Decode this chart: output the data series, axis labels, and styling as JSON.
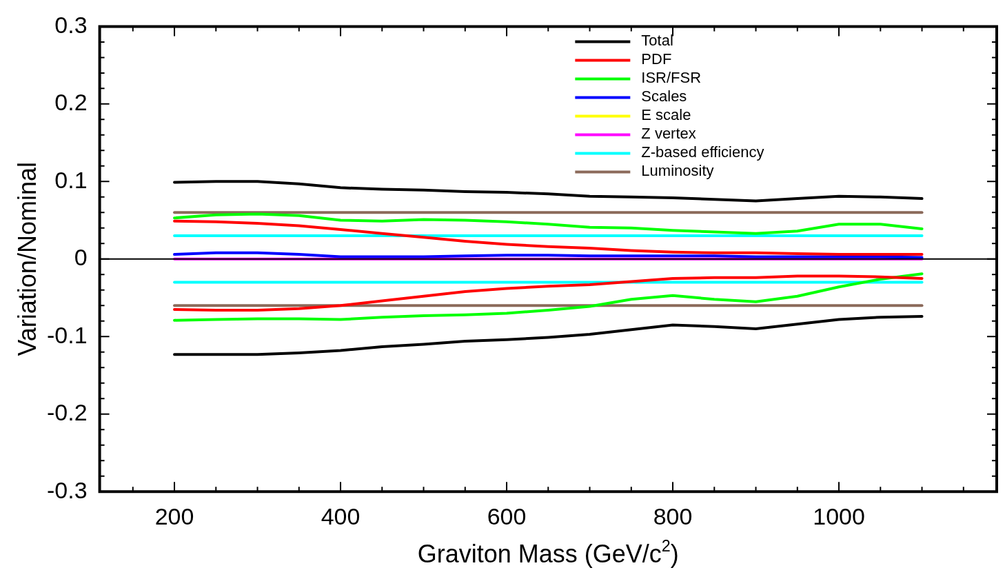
{
  "chart_data": {
    "type": "line",
    "xlabel": "Graviton Mass (GeV/c$^{2}$)",
    "ylabel": "Variation/Nominal",
    "x": [
      200,
      250,
      300,
      350,
      400,
      450,
      500,
      550,
      600,
      650,
      700,
      750,
      800,
      850,
      900,
      950,
      1000,
      1050,
      1100
    ],
    "xlim": [
      110,
      1190
    ],
    "xticks": [
      {
        "value": 150,
        "label": null
      },
      200,
      {
        "value": 250,
        "label": null
      },
      {
        "value": 300,
        "label": null
      },
      {
        "value": 350,
        "label": null
      },
      400,
      {
        "value": 450,
        "label": null
      },
      {
        "value": 500,
        "label": null
      },
      {
        "value": 550,
        "label": null
      },
      600,
      {
        "value": 650,
        "label": null
      },
      {
        "value": 700,
        "label": null
      },
      {
        "value": 750,
        "label": null
      },
      800,
      {
        "value": 850,
        "label": null
      },
      {
        "value": 900,
        "label": null
      },
      {
        "value": 950,
        "label": null
      },
      1000,
      {
        "value": 1050,
        "label": null
      },
      {
        "value": 1100,
        "label": null
      },
      {
        "value": 1150,
        "label": null
      }
    ],
    "ylim": [
      -0.3,
      0.3
    ],
    "yticks": [
      -0.3,
      {
        "value": -0.28,
        "label": null
      },
      {
        "value": -0.26,
        "label": null
      },
      {
        "value": -0.24,
        "label": null
      },
      {
        "value": -0.22,
        "label": null
      },
      -0.2,
      {
        "value": -0.18,
        "label": null
      },
      {
        "value": -0.16,
        "label": null
      },
      {
        "value": -0.14,
        "label": null
      },
      {
        "value": -0.12,
        "label": null
      },
      -0.1,
      {
        "value": -0.08,
        "label": null
      },
      {
        "value": -0.06,
        "label": null
      },
      {
        "value": -0.04,
        "label": null
      },
      {
        "value": -0.02,
        "label": null
      },
      0,
      {
        "value": 0.02,
        "label": null
      },
      {
        "value": 0.04,
        "label": null
      },
      {
        "value": 0.06,
        "label": null
      },
      {
        "value": 0.08,
        "label": null
      },
      0.1,
      {
        "value": 0.12,
        "label": null
      },
      {
        "value": 0.14,
        "label": null
      },
      {
        "value": 0.16,
        "label": null
      },
      {
        "value": 0.18,
        "label": null
      },
      0.2,
      {
        "value": 0.22,
        "label": null
      },
      {
        "value": 0.24,
        "label": null
      },
      {
        "value": 0.26,
        "label": null
      },
      {
        "value": 0.28,
        "label": null
      },
      0.3
    ],
    "legend": "top right",
    "marker": "none",
    "line_style": "solid",
    "ref_lines": [
      {
        "axis": "y",
        "value": 0,
        "color": "#000000"
      }
    ],
    "series": [
      {
        "name": "Total",
        "color": "#000000",
        "values": [
          0.099,
          0.1,
          0.1,
          0.097,
          0.092,
          0.09,
          0.089,
          0.087,
          0.086,
          0.084,
          0.081,
          0.08,
          0.079,
          0.077,
          0.075,
          0.078,
          0.081,
          0.08,
          0.078
        ]
      },
      {
        "color": "#000000",
        "values": [
          -0.123,
          -0.123,
          -0.123,
          -0.121,
          -0.118,
          -0.113,
          -0.11,
          -0.106,
          -0.104,
          -0.101,
          -0.097,
          -0.091,
          -0.085,
          -0.087,
          -0.09,
          -0.084,
          -0.078,
          -0.075,
          -0.074
        ]
      },
      {
        "name": "PDF",
        "color": "#ff0000",
        "values": [
          0.049,
          0.048,
          0.046,
          0.043,
          0.038,
          0.033,
          0.028,
          0.023,
          0.019,
          0.016,
          0.014,
          0.011,
          0.009,
          0.008,
          0.008,
          0.007,
          0.006,
          0.006,
          0.006
        ]
      },
      {
        "color": "#ff0000",
        "values": [
          -0.065,
          -0.066,
          -0.066,
          -0.064,
          -0.06,
          -0.054,
          -0.048,
          -0.042,
          -0.038,
          -0.035,
          -0.033,
          -0.029,
          -0.025,
          -0.024,
          -0.024,
          -0.022,
          -0.022,
          -0.023,
          -0.025
        ]
      },
      {
        "name": "ISR/FSR",
        "color": "#00ff00",
        "values": [
          0.053,
          0.057,
          0.058,
          0.056,
          0.05,
          0.049,
          0.051,
          0.05,
          0.048,
          0.045,
          0.041,
          0.04,
          0.037,
          0.035,
          0.033,
          0.036,
          0.045,
          0.045,
          0.039
        ]
      },
      {
        "color": "#00ff00",
        "values": [
          -0.079,
          -0.078,
          -0.077,
          -0.077,
          -0.078,
          -0.075,
          -0.073,
          -0.072,
          -0.07,
          -0.066,
          -0.061,
          -0.052,
          -0.047,
          -0.052,
          -0.055,
          -0.048,
          -0.036,
          -0.026,
          -0.019
        ]
      },
      {
        "name": "Scales",
        "color": "#0000ff",
        "values": [
          0.006,
          0.008,
          0.008,
          0.006,
          0.003,
          0.003,
          0.003,
          0.004,
          0.005,
          0.005,
          0.004,
          0.004,
          0.004,
          0.004,
          0.003,
          0.003,
          0.003,
          0.003,
          0.002
        ]
      },
      {
        "name": "E scale",
        "color": "#ffff00",
        "values": [
          null,
          null,
          null,
          null,
          null,
          null,
          null,
          null,
          null,
          null,
          null,
          null,
          null,
          null,
          null,
          null,
          null,
          null,
          null
        ]
      },
      {
        "name": "Z vertex",
        "color": "#ff00ff",
        "values": [
          0,
          0,
          0,
          0,
          0,
          0,
          0,
          0,
          0,
          0,
          0,
          0,
          0,
          0,
          0,
          0,
          0,
          0,
          0
        ]
      },
      {
        "name": "Z-based efficiency",
        "color": "#00ffff",
        "values": [
          0.03,
          0.03,
          0.03,
          0.03,
          0.03,
          0.03,
          0.03,
          0.03,
          0.03,
          0.03,
          0.03,
          0.03,
          0.03,
          0.03,
          0.03,
          0.03,
          0.03,
          0.03,
          0.03
        ]
      },
      {
        "color": "#00ffff",
        "values": [
          -0.03,
          -0.03,
          -0.03,
          -0.03,
          -0.03,
          -0.03,
          -0.03,
          -0.03,
          -0.03,
          -0.03,
          -0.03,
          -0.03,
          -0.03,
          -0.03,
          -0.03,
          -0.03,
          -0.03,
          -0.03,
          -0.03
        ]
      },
      {
        "name": "Luminosity",
        "color": "#8b6a5a",
        "values": [
          0.06,
          0.06,
          0.06,
          0.06,
          0.06,
          0.06,
          0.06,
          0.06,
          0.06,
          0.06,
          0.06,
          0.06,
          0.06,
          0.06,
          0.06,
          0.06,
          0.06,
          0.06,
          0.06
        ]
      },
      {
        "color": "#8b6a5a",
        "values": [
          -0.06,
          -0.06,
          -0.06,
          -0.06,
          -0.06,
          -0.06,
          -0.06,
          -0.06,
          -0.06,
          -0.06,
          -0.06,
          -0.06,
          -0.06,
          -0.06,
          -0.06,
          -0.06,
          -0.06,
          -0.06,
          -0.06
        ]
      }
    ]
  }
}
